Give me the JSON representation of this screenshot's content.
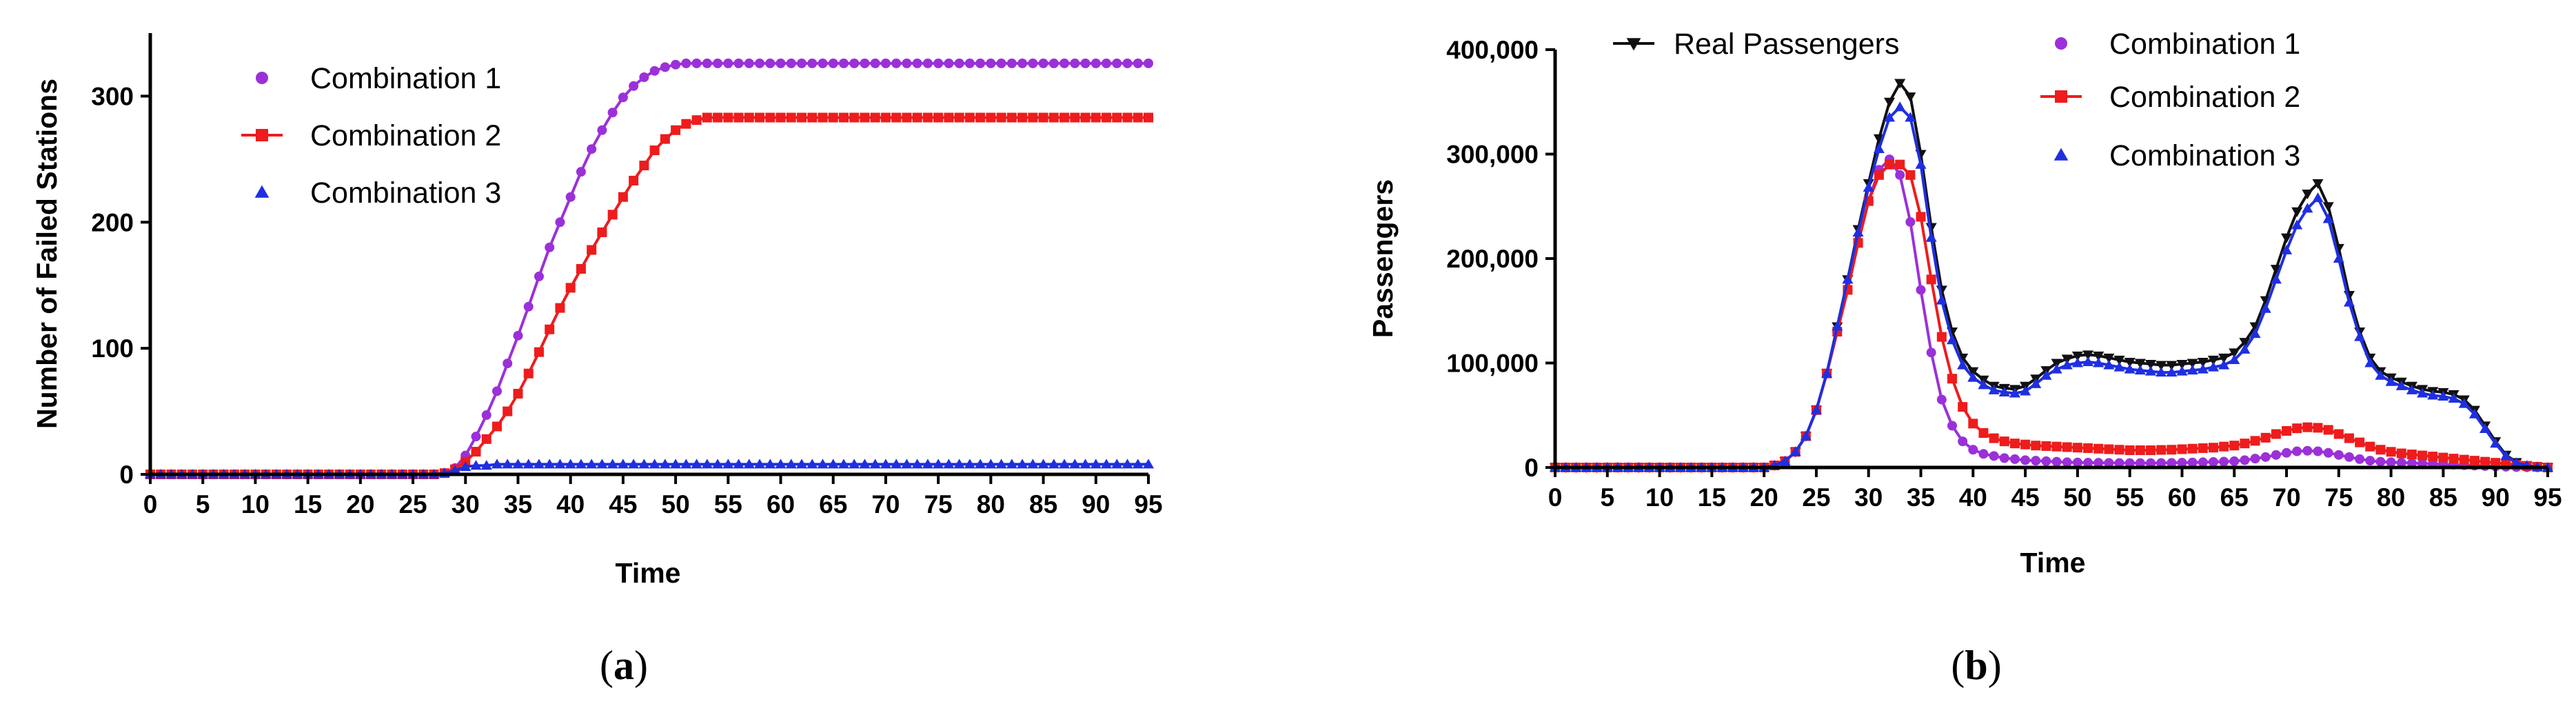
{
  "chart_data": [
    {
      "type": "line",
      "panel": "a",
      "caption_letter": "a",
      "xlabel": "Time",
      "ylabel": "Number of Failed Stations",
      "xlim": [
        0,
        95
      ],
      "ylim": [
        0,
        350
      ],
      "xticks": [
        "0",
        "5",
        "10",
        "15",
        "20",
        "25",
        "30",
        "35",
        "40",
        "45",
        "50",
        "55",
        "60",
        "65",
        "70",
        "75",
        "80",
        "85",
        "90",
        "95"
      ],
      "yticks": [
        "0",
        "100",
        "200",
        "300"
      ],
      "grid": false,
      "legend_position": "top-left",
      "series": [
        {
          "name": "Combination 1",
          "color": "#9b30d9",
          "marker": "circle",
          "line": true,
          "values": [
            0,
            0,
            0,
            0,
            0,
            0,
            0,
            0,
            0,
            0,
            0,
            0,
            0,
            0,
            0,
            0,
            0,
            0,
            0,
            0,
            0,
            0,
            0,
            0,
            0,
            0,
            0,
            0,
            1,
            5,
            15,
            30,
            47,
            66,
            88,
            110,
            133,
            157,
            180,
            200,
            220,
            240,
            258,
            273,
            287,
            299,
            308,
            315,
            320,
            323,
            325,
            326,
            326,
            326,
            326,
            326,
            326,
            326,
            326,
            326,
            326,
            326,
            326,
            326,
            326,
            326,
            326,
            326,
            326,
            326,
            326,
            326,
            326,
            326,
            326,
            326,
            326,
            326,
            326,
            326,
            326,
            326,
            326,
            326,
            326,
            326,
            326,
            326,
            326,
            326,
            326,
            326,
            326,
            326,
            326,
            326
          ]
        },
        {
          "name": "Combination 2",
          "color": "#ee1c1c",
          "marker": "square",
          "line": true,
          "values": [
            0,
            0,
            0,
            0,
            0,
            0,
            0,
            0,
            0,
            0,
            0,
            0,
            0,
            0,
            0,
            0,
            0,
            0,
            0,
            0,
            0,
            0,
            0,
            0,
            0,
            0,
            0,
            0,
            1,
            4,
            10,
            18,
            28,
            38,
            50,
            64,
            80,
            97,
            115,
            132,
            148,
            163,
            178,
            192,
            206,
            220,
            233,
            245,
            257,
            266,
            273,
            278,
            281,
            283,
            283,
            283,
            283,
            283,
            283,
            283,
            283,
            283,
            283,
            283,
            283,
            283,
            283,
            283,
            283,
            283,
            283,
            283,
            283,
            283,
            283,
            283,
            283,
            283,
            283,
            283,
            283,
            283,
            283,
            283,
            283,
            283,
            283,
            283,
            283,
            283,
            283,
            283,
            283,
            283,
            283,
            283
          ]
        },
        {
          "name": "Combination 3",
          "color": "#1f2fe0",
          "marker": "triangle",
          "line": true,
          "values": [
            0,
            0,
            0,
            0,
            0,
            0,
            0,
            0,
            0,
            0,
            0,
            0,
            0,
            0,
            0,
            0,
            0,
            0,
            0,
            0,
            0,
            0,
            0,
            0,
            0,
            0,
            0,
            0,
            1,
            3,
            6,
            7,
            7,
            8,
            8,
            8,
            8,
            8,
            8,
            8,
            8,
            8,
            8,
            8,
            8,
            8,
            8,
            8,
            8,
            8,
            8,
            8,
            8,
            8,
            8,
            8,
            8,
            8,
            8,
            8,
            8,
            8,
            8,
            8,
            8,
            8,
            8,
            8,
            8,
            8,
            8,
            8,
            8,
            8,
            8,
            8,
            8,
            8,
            8,
            8,
            8,
            8,
            8,
            8,
            8,
            8,
            8,
            8,
            8,
            8,
            8,
            8,
            8,
            8,
            8,
            8
          ]
        }
      ]
    },
    {
      "type": "line",
      "panel": "b",
      "caption_letter": "b",
      "xlabel": "Time",
      "ylabel": "Passengers",
      "xlim": [
        0,
        95
      ],
      "ylim": [
        0,
        400000
      ],
      "xticks": [
        "0",
        "5",
        "10",
        "15",
        "20",
        "25",
        "30",
        "35",
        "40",
        "45",
        "50",
        "55",
        "60",
        "65",
        "70",
        "75",
        "80",
        "85",
        "90",
        "95"
      ],
      "yticks": [
        "0",
        "100,000",
        "200,000",
        "300,000",
        "400,000"
      ],
      "grid": false,
      "legend_position": "top",
      "series": [
        {
          "name": "Real Passengers",
          "color": "#111111",
          "marker": "triangle-down",
          "line": true,
          "values": [
            0,
            0,
            0,
            0,
            0,
            0,
            0,
            0,
            0,
            0,
            0,
            0,
            0,
            0,
            0,
            0,
            0,
            0,
            0,
            0,
            0,
            2000,
            6000,
            15000,
            30000,
            55000,
            90000,
            135000,
            180000,
            228000,
            272000,
            315000,
            350000,
            368000,
            355000,
            300000,
            230000,
            170000,
            130000,
            105000,
            92000,
            84000,
            78000,
            76000,
            75000,
            78000,
            85000,
            93000,
            100000,
            104000,
            107000,
            108000,
            107000,
            105000,
            103000,
            101000,
            100000,
            99000,
            98000,
            98000,
            99000,
            100000,
            101000,
            103000,
            105000,
            110000,
            120000,
            135000,
            160000,
            190000,
            220000,
            245000,
            262000,
            272000,
            250000,
            210000,
            165000,
            130000,
            105000,
            92000,
            86000,
            82000,
            78000,
            75000,
            73000,
            72000,
            70000,
            65000,
            55000,
            40000,
            25000,
            12000,
            5000,
            2000,
            500,
            0
          ]
        },
        {
          "name": "Combination 1",
          "color": "#9b30d9",
          "marker": "circle",
          "line": true,
          "values": [
            0,
            0,
            0,
            0,
            0,
            0,
            0,
            0,
            0,
            0,
            0,
            0,
            0,
            0,
            0,
            0,
            0,
            0,
            0,
            0,
            0,
            2000,
            6000,
            15000,
            30000,
            55000,
            90000,
            130000,
            170000,
            215000,
            255000,
            285000,
            295000,
            280000,
            235000,
            170000,
            110000,
            65000,
            40000,
            25000,
            17000,
            13000,
            11000,
            9000,
            8000,
            7000,
            6500,
            6000,
            5500,
            5000,
            4800,
            4600,
            4500,
            4400,
            4300,
            4200,
            4200,
            4200,
            4300,
            4400,
            4600,
            4800,
            5000,
            5300,
            5600,
            6000,
            7000,
            8500,
            10000,
            12000,
            14000,
            15500,
            16000,
            15500,
            14000,
            12000,
            10000,
            8000,
            6500,
            5500,
            5000,
            4600,
            4200,
            3800,
            3400,
            3000,
            2600,
            2200,
            1800,
            1400,
            1000,
            700,
            400,
            200,
            100,
            0
          ]
        },
        {
          "name": "Combination 2",
          "color": "#ee1c1c",
          "marker": "square",
          "line": true,
          "values": [
            0,
            0,
            0,
            0,
            0,
            0,
            0,
            0,
            0,
            0,
            0,
            0,
            0,
            0,
            0,
            0,
            0,
            0,
            0,
            0,
            0,
            2000,
            6000,
            15000,
            30000,
            55000,
            90000,
            130000,
            170000,
            215000,
            255000,
            280000,
            290000,
            290000,
            280000,
            240000,
            180000,
            125000,
            85000,
            58000,
            42000,
            33000,
            28000,
            25000,
            23000,
            22000,
            21000,
            20500,
            20000,
            19500,
            19000,
            18500,
            18000,
            17500,
            17000,
            16500,
            16500,
            16500,
            16800,
            17000,
            17500,
            18000,
            18500,
            19000,
            20000,
            21000,
            23000,
            25500,
            28500,
            32000,
            35000,
            37500,
            38500,
            38000,
            36000,
            32000,
            28000,
            24000,
            20000,
            17000,
            15000,
            13500,
            12500,
            11500,
            10500,
            9500,
            8500,
            7500,
            6500,
            5500,
            4500,
            3500,
            2500,
            1500,
            700,
            0
          ]
        },
        {
          "name": "Combination 3",
          "color": "#1f2fe0",
          "marker": "triangle",
          "line": true,
          "values": [
            0,
            0,
            0,
            0,
            0,
            0,
            0,
            0,
            0,
            0,
            0,
            0,
            0,
            0,
            0,
            0,
            0,
            0,
            0,
            0,
            0,
            2000,
            6000,
            15000,
            30000,
            55000,
            90000,
            135000,
            180000,
            225000,
            268000,
            305000,
            335000,
            345000,
            335000,
            290000,
            220000,
            160000,
            122000,
            98000,
            86000,
            79000,
            74000,
            72000,
            71000,
            73000,
            80000,
            88000,
            94000,
            98000,
            100000,
            101000,
            100000,
            98000,
            96000,
            94000,
            93000,
            92000,
            91000,
            91000,
            92000,
            93000,
            94000,
            96000,
            98000,
            103000,
            113000,
            128000,
            152000,
            180000,
            208000,
            232000,
            248000,
            258000,
            238000,
            200000,
            158000,
            125000,
            100000,
            88000,
            82000,
            78000,
            74000,
            71000,
            69000,
            68000,
            66000,
            61000,
            51000,
            37000,
            23000,
            11000,
            4500,
            1800,
            400,
            0
          ]
        }
      ]
    }
  ]
}
